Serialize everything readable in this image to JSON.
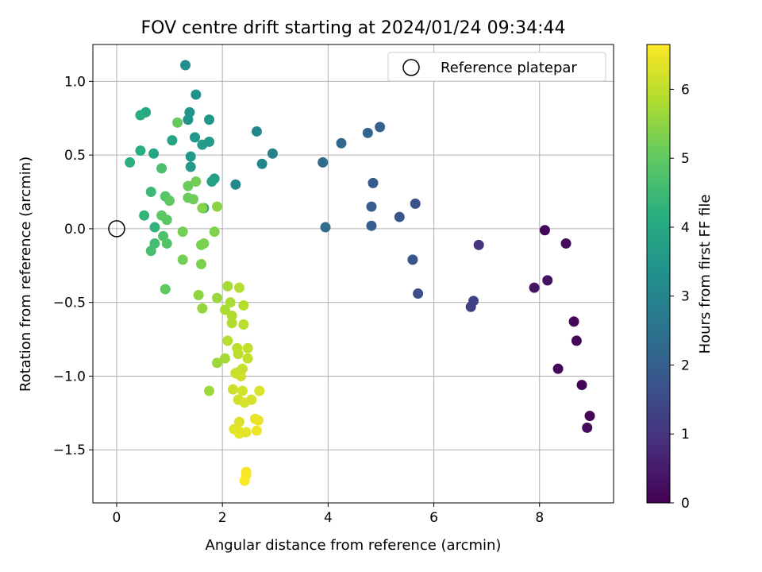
{
  "chart_data": {
    "type": "scatter",
    "title": "FOV centre drift starting at 2024/01/24 09:34:44",
    "xlabel": "Angular distance from reference (arcmin)",
    "ylabel": "Rotation from reference (arcmin)",
    "xlim": [
      -0.45,
      9.4
    ],
    "ylim": [
      -1.86,
      1.25
    ],
    "xticks": [
      0,
      2,
      4,
      6,
      8
    ],
    "yticks": [
      -1.5,
      -1.0,
      -0.5,
      0.0,
      0.5,
      1.0
    ],
    "xtick_labels": [
      "0",
      "2",
      "4",
      "6",
      "8"
    ],
    "ytick_labels": [
      "−1.5",
      "−1.0",
      "−0.5",
      "0.0",
      "0.5",
      "1.0"
    ],
    "grid": true,
    "legend": {
      "position": "top-right",
      "label": "Reference platepar"
    },
    "reference_point": {
      "x": 0,
      "y": 0
    },
    "colorbar": {
      "label": "Hours from first FF file",
      "range": [
        0,
        6.65
      ],
      "ticks": [
        0,
        1,
        2,
        3,
        4,
        5,
        6
      ],
      "colormap": "viridis"
    },
    "points": [
      {
        "x": 8.1,
        "y": -0.01,
        "t": 0.1
      },
      {
        "x": 8.5,
        "y": -0.1,
        "t": 0.2
      },
      {
        "x": 8.35,
        "y": -0.95,
        "t": 0.12
      },
      {
        "x": 8.65,
        "y": -0.63,
        "t": 0.15
      },
      {
        "x": 8.7,
        "y": -0.76,
        "t": 0.1
      },
      {
        "x": 8.8,
        "y": -1.06,
        "t": 0.05
      },
      {
        "x": 8.95,
        "y": -1.27,
        "t": 0.08
      },
      {
        "x": 8.9,
        "y": -1.35,
        "t": 0.2
      },
      {
        "x": 8.15,
        "y": -0.35,
        "t": 0.3
      },
      {
        "x": 7.9,
        "y": -0.4,
        "t": 0.35
      },
      {
        "x": 6.85,
        "y": -0.11,
        "t": 1.0
      },
      {
        "x": 6.75,
        "y": -0.49,
        "t": 1.3
      },
      {
        "x": 6.7,
        "y": -0.53,
        "t": 1.25
      },
      {
        "x": 5.7,
        "y": -0.44,
        "t": 1.6
      },
      {
        "x": 5.6,
        "y": -0.21,
        "t": 1.75
      },
      {
        "x": 5.65,
        "y": 0.17,
        "t": 1.7
      },
      {
        "x": 5.35,
        "y": 0.08,
        "t": 1.8
      },
      {
        "x": 4.85,
        "y": 0.31,
        "t": 1.9
      },
      {
        "x": 4.82,
        "y": 0.15,
        "t": 1.95
      },
      {
        "x": 4.82,
        "y": 0.02,
        "t": 2.0
      },
      {
        "x": 4.98,
        "y": 0.69,
        "t": 2.1
      },
      {
        "x": 4.75,
        "y": 0.65,
        "t": 2.15
      },
      {
        "x": 4.25,
        "y": 0.58,
        "t": 2.2
      },
      {
        "x": 3.9,
        "y": 0.45,
        "t": 2.3
      },
      {
        "x": 3.95,
        "y": 0.01,
        "t": 2.4
      },
      {
        "x": 2.95,
        "y": 0.51,
        "t": 2.9
      },
      {
        "x": 2.75,
        "y": 0.44,
        "t": 3.0
      },
      {
        "x": 2.65,
        "y": 0.66,
        "t": 3.05
      },
      {
        "x": 2.25,
        "y": 0.3,
        "t": 3.15
      },
      {
        "x": 1.3,
        "y": 1.11,
        "t": 3.3
      },
      {
        "x": 1.5,
        "y": 0.91,
        "t": 3.35
      },
      {
        "x": 1.38,
        "y": 0.79,
        "t": 3.4
      },
      {
        "x": 1.35,
        "y": 0.74,
        "t": 3.45
      },
      {
        "x": 1.75,
        "y": 0.74,
        "t": 3.5
      },
      {
        "x": 1.75,
        "y": 0.59,
        "t": 3.55
      },
      {
        "x": 1.62,
        "y": 0.57,
        "t": 3.6
      },
      {
        "x": 1.48,
        "y": 0.62,
        "t": 3.5
      },
      {
        "x": 1.4,
        "y": 0.49,
        "t": 3.55
      },
      {
        "x": 1.4,
        "y": 0.42,
        "t": 3.6
      },
      {
        "x": 1.85,
        "y": 0.34,
        "t": 3.7
      },
      {
        "x": 1.8,
        "y": 0.32,
        "t": 3.75
      },
      {
        "x": 1.65,
        "y": 0.14,
        "t": 3.8
      },
      {
        "x": 1.05,
        "y": 0.6,
        "t": 3.85
      },
      {
        "x": 0.7,
        "y": 0.51,
        "t": 3.9
      },
      {
        "x": 0.55,
        "y": 0.79,
        "t": 4.05
      },
      {
        "x": 0.45,
        "y": 0.77,
        "t": 4.1
      },
      {
        "x": 0.45,
        "y": 0.53,
        "t": 4.15
      },
      {
        "x": 0.25,
        "y": 0.45,
        "t": 4.2
      },
      {
        "x": 0.72,
        "y": 0.01,
        "t": 4.3
      },
      {
        "x": 0.52,
        "y": 0.09,
        "t": 4.35
      },
      {
        "x": 0.65,
        "y": 0.25,
        "t": 4.5
      },
      {
        "x": 0.72,
        "y": -0.1,
        "t": 4.6
      },
      {
        "x": 0.65,
        "y": -0.15,
        "t": 4.65
      },
      {
        "x": 0.85,
        "y": 0.41,
        "t": 4.7
      },
      {
        "x": 0.88,
        "y": -0.05,
        "t": 4.75
      },
      {
        "x": 0.95,
        "y": -0.1,
        "t": 4.8
      },
      {
        "x": 0.92,
        "y": 0.22,
        "t": 4.85
      },
      {
        "x": 0.95,
        "y": 0.06,
        "t": 4.9
      },
      {
        "x": 0.85,
        "y": 0.09,
        "t": 4.95
      },
      {
        "x": 1.0,
        "y": 0.19,
        "t": 5.0
      },
      {
        "x": 0.92,
        "y": -0.41,
        "t": 5.0
      },
      {
        "x": 1.15,
        "y": 0.72,
        "t": 5.05
      },
      {
        "x": 1.35,
        "y": 0.29,
        "t": 5.1
      },
      {
        "x": 1.35,
        "y": 0.21,
        "t": 5.1
      },
      {
        "x": 1.45,
        "y": 0.2,
        "t": 5.15
      },
      {
        "x": 1.5,
        "y": 0.32,
        "t": 5.2
      },
      {
        "x": 1.25,
        "y": -0.02,
        "t": 5.2
      },
      {
        "x": 1.25,
        "y": -0.21,
        "t": 5.2
      },
      {
        "x": 1.6,
        "y": -0.11,
        "t": 5.25
      },
      {
        "x": 1.65,
        "y": -0.1,
        "t": 5.3
      },
      {
        "x": 1.6,
        "y": -0.24,
        "t": 5.3
      },
      {
        "x": 1.85,
        "y": -0.02,
        "t": 5.35
      },
      {
        "x": 1.62,
        "y": 0.14,
        "t": 5.4
      },
      {
        "x": 1.9,
        "y": 0.15,
        "t": 5.45
      },
      {
        "x": 1.55,
        "y": -0.45,
        "t": 5.5
      },
      {
        "x": 1.62,
        "y": -0.54,
        "t": 5.55
      },
      {
        "x": 1.9,
        "y": -0.47,
        "t": 5.6
      },
      {
        "x": 1.75,
        "y": -1.1,
        "t": 5.65
      },
      {
        "x": 1.9,
        "y": -0.91,
        "t": 5.65
      },
      {
        "x": 2.05,
        "y": -0.88,
        "t": 5.7
      },
      {
        "x": 2.1,
        "y": -0.39,
        "t": 5.75
      },
      {
        "x": 2.05,
        "y": -0.55,
        "t": 5.8
      },
      {
        "x": 2.15,
        "y": -0.5,
        "t": 5.8
      },
      {
        "x": 2.18,
        "y": -0.59,
        "t": 5.85
      },
      {
        "x": 2.18,
        "y": -0.64,
        "t": 5.85
      },
      {
        "x": 2.32,
        "y": -0.4,
        "t": 5.9
      },
      {
        "x": 2.4,
        "y": -0.52,
        "t": 5.9
      },
      {
        "x": 2.4,
        "y": -0.65,
        "t": 5.95
      },
      {
        "x": 2.1,
        "y": -0.76,
        "t": 5.95
      },
      {
        "x": 2.28,
        "y": -0.81,
        "t": 6.0
      },
      {
        "x": 2.3,
        "y": -0.85,
        "t": 6.0
      },
      {
        "x": 2.48,
        "y": -0.81,
        "t": 6.05
      },
      {
        "x": 2.48,
        "y": -0.88,
        "t": 6.05
      },
      {
        "x": 2.25,
        "y": -0.98,
        "t": 6.1
      },
      {
        "x": 2.32,
        "y": -0.97,
        "t": 6.1
      },
      {
        "x": 2.38,
        "y": -0.95,
        "t": 6.1
      },
      {
        "x": 2.35,
        "y": -1.0,
        "t": 6.15
      },
      {
        "x": 2.2,
        "y": -1.09,
        "t": 6.15
      },
      {
        "x": 2.38,
        "y": -1.1,
        "t": 6.2
      },
      {
        "x": 2.3,
        "y": -1.16,
        "t": 6.2
      },
      {
        "x": 2.42,
        "y": -1.18,
        "t": 6.25
      },
      {
        "x": 2.55,
        "y": -1.16,
        "t": 6.25
      },
      {
        "x": 2.7,
        "y": -1.1,
        "t": 6.3
      },
      {
        "x": 2.32,
        "y": -1.31,
        "t": 6.3
      },
      {
        "x": 2.22,
        "y": -1.36,
        "t": 6.35
      },
      {
        "x": 2.3,
        "y": -1.37,
        "t": 6.35
      },
      {
        "x": 2.32,
        "y": -1.39,
        "t": 6.4
      },
      {
        "x": 2.45,
        "y": -1.38,
        "t": 6.4
      },
      {
        "x": 2.62,
        "y": -1.29,
        "t": 6.45
      },
      {
        "x": 2.68,
        "y": -1.3,
        "t": 6.45
      },
      {
        "x": 2.65,
        "y": -1.37,
        "t": 6.5
      },
      {
        "x": 2.45,
        "y": -1.65,
        "t": 6.55
      },
      {
        "x": 2.45,
        "y": -1.67,
        "t": 6.6
      },
      {
        "x": 2.42,
        "y": -1.71,
        "t": 6.62
      }
    ]
  }
}
